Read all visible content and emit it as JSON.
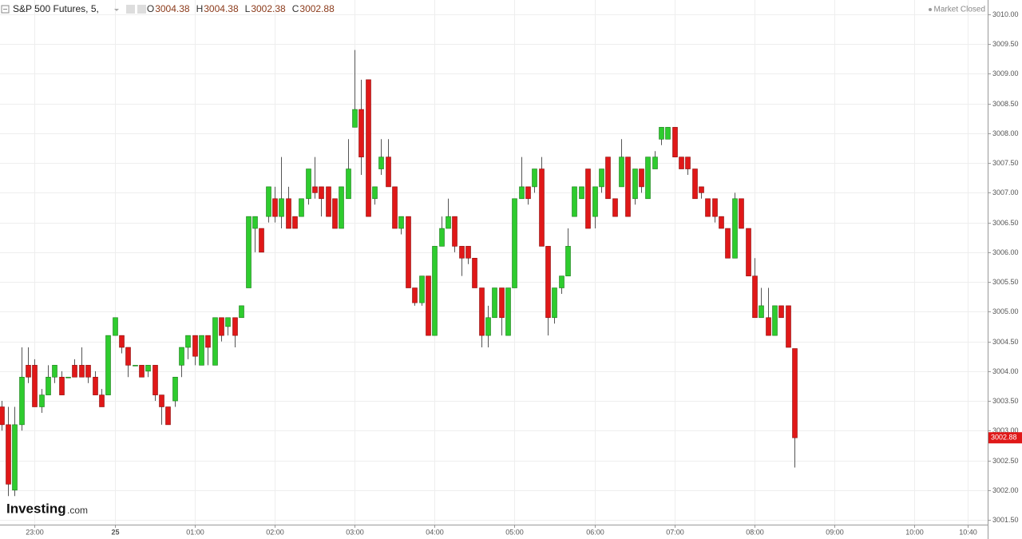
{
  "chart_data": {
    "type": "candlestick",
    "header": {
      "title": "S&P 500 Futures, 5,",
      "ohlc": [
        {
          "label": "O",
          "value": "3004.38"
        },
        {
          "label": "H",
          "value": "3004.38"
        },
        {
          "label": "L",
          "value": "3002.38"
        },
        {
          "label": "C",
          "value": "3002.88"
        }
      ]
    },
    "status": "Market Closed",
    "brand": {
      "name": "Investing",
      "suffix": ".com"
    },
    "price_label": "3002.88",
    "up_color": "#2ecc2e",
    "down_color": "#e01818",
    "grid": true,
    "xlim": [
      "22:34",
      "10:55"
    ],
    "ylim": [
      3001.42,
      3010.24
    ],
    "xticks": [
      "23:00",
      {
        "value": "00:00",
        "label": "25"
      },
      "01:00",
      "02:00",
      "03:00",
      "04:00",
      "05:00",
      "06:00",
      "07:00",
      "08:00",
      "09:00",
      "10:00",
      "10:40"
    ],
    "yticks": [
      {
        "value": 3001.5,
        "label": "3001.50"
      },
      {
        "value": 3002,
        "label": "3002.00"
      },
      {
        "value": 3002.5,
        "label": "3002.50"
      },
      {
        "value": 3003,
        "label": "3003.00"
      },
      {
        "value": 3003.5,
        "label": "3003.50"
      },
      {
        "value": 3004,
        "label": "3004.00"
      },
      {
        "value": 3004.5,
        "label": "3004.50"
      },
      {
        "value": 3005,
        "label": "3005.00"
      },
      {
        "value": 3005.5,
        "label": "3005.50"
      },
      {
        "value": 3006,
        "label": "3006.00"
      },
      {
        "value": 3006.5,
        "label": "3006.50"
      },
      {
        "value": 3007,
        "label": "3007.00"
      },
      {
        "value": 3007.5,
        "label": "3007.50"
      },
      {
        "value": 3008,
        "label": "3008.00"
      },
      {
        "value": 3008.5,
        "label": "3008.50"
      },
      {
        "value": 3009,
        "label": "3009.00"
      },
      {
        "value": 3009.5,
        "label": "3009.50"
      },
      {
        "value": 3010,
        "label": "3010.00"
      }
    ],
    "x": [
      "22:35",
      "22:40",
      "22:45",
      "22:50",
      "22:55",
      "23:00",
      "23:05",
      "23:10",
      "23:15",
      "23:20",
      "23:25",
      "23:30",
      "23:35",
      "23:40",
      "23:45",
      "23:50",
      "23:55",
      "00:00",
      "00:05",
      "00:10",
      "00:15",
      "00:20",
      "00:25",
      "00:30",
      "00:35",
      "00:40",
      "00:45",
      "00:50",
      "00:55",
      "01:00",
      "01:05",
      "01:10",
      "01:15",
      "01:20",
      "01:25",
      "01:30",
      "01:35",
      "01:40",
      "01:45",
      "01:50",
      "01:55",
      "02:00",
      "02:05",
      "02:10",
      "02:15",
      "02:20",
      "02:25",
      "02:30",
      "02:35",
      "02:40",
      "02:45",
      "02:50",
      "02:55",
      "03:00",
      "03:05",
      "03:10",
      "03:15",
      "03:20",
      "03:25",
      "03:30",
      "03:35",
      "03:40",
      "03:45",
      "03:50",
      "03:55",
      "04:00",
      "04:05",
      "04:10",
      "04:15",
      "04:20",
      "04:25",
      "04:30",
      "04:35",
      "04:40",
      "04:45",
      "04:50",
      "04:55",
      "05:00",
      "05:05",
      "05:10",
      "05:15",
      "05:20",
      "05:25",
      "05:30",
      "05:35",
      "05:40",
      "05:45",
      "05:50",
      "05:55",
      "06:00",
      "06:05",
      "06:10",
      "06:15",
      "06:20",
      "06:25",
      "06:30",
      "06:35",
      "06:40",
      "06:45",
      "06:50",
      "06:55",
      "07:00",
      "07:05",
      "07:10",
      "07:15",
      "07:20",
      "07:25",
      "07:30",
      "07:35",
      "07:40",
      "07:45",
      "07:50",
      "07:55",
      "08:00",
      "08:05",
      "08:10",
      "08:15",
      "08:20",
      "08:25",
      "08:30"
    ],
    "open": [
      3003.4,
      3003.1,
      3002.0,
      3003.1,
      3004.1,
      3004.1,
      3003.4,
      3003.6,
      3003.9,
      3003.9,
      3003.9,
      3004.1,
      3004.1,
      3004.1,
      3003.9,
      3003.6,
      3003.6,
      3004.6,
      3004.6,
      3004.4,
      3004.1,
      3004.1,
      3004.0,
      3004.1,
      3003.6,
      3003.4,
      3003.5,
      3004.1,
      3004.4,
      3004.6,
      3004.1,
      3004.6,
      3004.1,
      3004.9,
      3004.75,
      3004.9,
      3004.9,
      3005.4,
      3006.4,
      3006.4,
      3006.6,
      3006.9,
      3006.6,
      3006.9,
      3006.6,
      3006.6,
      3006.9,
      3007.1,
      3007.1,
      3007.1,
      3006.9,
      3006.4,
      3006.9,
      3008.1,
      3008.4,
      3008.9,
      3006.9,
      3007.4,
      3007.6,
      3007.1,
      3006.4,
      3006.6,
      3005.4,
      3005.15,
      3005.6,
      3004.6,
      3006.1,
      3006.4,
      3006.6,
      3006.1,
      3006.1,
      3005.9,
      3005.4,
      3004.6,
      3004.9,
      3005.4,
      3004.6,
      3005.4,
      3006.9,
      3007.1,
      3007.1,
      3007.4,
      3006.1,
      3004.9,
      3005.4,
      3005.6,
      3006.6,
      3006.9,
      3007.4,
      3006.6,
      3007.1,
      3007.6,
      3006.9,
      3007.1,
      3007.6,
      3006.9,
      3007.4,
      3006.9,
      3007.4,
      3007.9,
      3007.9,
      3008.1,
      3007.6,
      3007.6,
      3007.4,
      3007.1,
      3006.9,
      3006.9,
      3006.6,
      3006.4,
      3005.9,
      3006.9,
      3006.4,
      3005.6,
      3004.9,
      3004.9,
      3004.6,
      3005.1,
      3005.1,
      3004.38
    ],
    "high": [
      3003.5,
      3003.4,
      3003.4,
      3004.4,
      3004.4,
      3004.2,
      3003.7,
      3004.1,
      3004.1,
      3004.0,
      3003.9,
      3004.2,
      3004.4,
      3004.1,
      3004.0,
      3003.7,
      3004.6,
      3004.9,
      3004.6,
      3004.4,
      3004.1,
      3004.1,
      3004.1,
      3004.1,
      3003.6,
      3003.4,
      3003.9,
      3004.4,
      3004.6,
      3004.6,
      3004.6,
      3004.6,
      3004.9,
      3004.9,
      3004.9,
      3004.9,
      3005.1,
      3006.6,
      3006.6,
      3006.4,
      3007.1,
      3007.1,
      3007.6,
      3007.1,
      3006.6,
      3006.9,
      3007.4,
      3007.6,
      3007.1,
      3007.1,
      3006.9,
      3007.1,
      3007.9,
      3009.4,
      3008.9,
      3008.9,
      3007.1,
      3007.9,
      3007.9,
      3007.1,
      3006.6,
      3006.6,
      3005.4,
      3005.6,
      3005.6,
      3006.1,
      3006.6,
      3006.9,
      3006.6,
      3006.1,
      3006.1,
      3005.9,
      3005.4,
      3005.1,
      3005.4,
      3005.4,
      3005.4,
      3006.9,
      3007.6,
      3007.1,
      3007.4,
      3007.6,
      3006.1,
      3005.4,
      3005.6,
      3006.4,
      3007.1,
      3007.1,
      3007.4,
      3007.1,
      3007.4,
      3007.6,
      3006.9,
      3007.9,
      3007.6,
      3007.4,
      3007.4,
      3007.6,
      3007.7,
      3008.1,
      3008.1,
      3008.1,
      3007.6,
      3007.6,
      3007.4,
      3007.1,
      3006.9,
      3006.9,
      3006.6,
      3006.4,
      3007.0,
      3006.9,
      3006.4,
      3005.9,
      3005.4,
      3005.4,
      3005.1,
      3005.1,
      3005.1,
      3004.38
    ],
    "low": [
      3003.0,
      3001.9,
      3001.9,
      3003.0,
      3003.8,
      3003.4,
      3003.3,
      3003.6,
      3003.8,
      3003.6,
      3003.9,
      3003.9,
      3003.9,
      3003.8,
      3003.6,
      3003.4,
      3003.6,
      3004.6,
      3004.3,
      3003.9,
      3004.1,
      3003.9,
      3003.9,
      3003.5,
      3003.1,
      3003.1,
      3003.4,
      3003.9,
      3004.2,
      3004.1,
      3004.1,
      3004.1,
      3004.1,
      3004.5,
      3004.6,
      3004.4,
      3004.9,
      3005.4,
      3006.0,
      3006.0,
      3006.5,
      3006.5,
      3006.4,
      3006.4,
      3006.4,
      3006.6,
      3006.8,
      3006.9,
      3006.6,
      3006.6,
      3006.4,
      3006.4,
      3006.9,
      3008.1,
      3007.3,
      3006.6,
      3006.8,
      3007.3,
      3007.1,
      3006.4,
      3006.3,
      3005.4,
      3005.1,
      3005.1,
      3004.6,
      3004.6,
      3006.1,
      3006.4,
      3006.0,
      3005.6,
      3005.8,
      3005.4,
      3004.4,
      3004.4,
      3004.9,
      3004.6,
      3004.6,
      3005.4,
      3006.9,
      3006.8,
      3007.0,
      3006.1,
      3004.6,
      3004.8,
      3005.3,
      3005.6,
      3006.6,
      3006.9,
      3006.4,
      3006.4,
      3007.0,
      3006.9,
      3006.6,
      3007.1,
      3006.6,
      3006.8,
      3007.0,
      3006.9,
      3007.4,
      3007.8,
      3007.9,
      3007.6,
      3007.4,
      3007.3,
      3006.9,
      3006.9,
      3006.6,
      3006.5,
      3006.4,
      3005.9,
      3005.9,
      3006.4,
      3005.6,
      3004.9,
      3004.9,
      3004.6,
      3004.6,
      3004.9,
      3004.4,
      3002.38
    ],
    "close": [
      3003.1,
      3002.1,
      3003.1,
      3003.9,
      3003.9,
      3003.4,
      3003.6,
      3003.9,
      3004.1,
      3003.6,
      3003.9,
      3003.9,
      3003.9,
      3003.9,
      3003.6,
      3003.4,
      3004.6,
      3004.9,
      3004.4,
      3004.1,
      3004.1,
      3003.9,
      3004.1,
      3003.6,
      3003.4,
      3003.1,
      3003.9,
      3004.4,
      3004.6,
      3004.25,
      3004.6,
      3004.4,
      3004.9,
      3004.6,
      3004.9,
      3004.6,
      3005.1,
      3006.6,
      3006.6,
      3006.0,
      3007.1,
      3006.6,
      3006.9,
      3006.4,
      3006.4,
      3006.9,
      3007.4,
      3007.0,
      3006.9,
      3006.6,
      3006.4,
      3007.1,
      3007.4,
      3008.4,
      3007.6,
      3006.6,
      3007.1,
      3007.6,
      3007.1,
      3006.4,
      3006.6,
      3005.4,
      3005.15,
      3005.6,
      3004.6,
      3006.1,
      3006.4,
      3006.6,
      3006.1,
      3005.9,
      3005.9,
      3005.4,
      3004.6,
      3004.9,
      3005.4,
      3004.9,
      3005.4,
      3006.9,
      3007.1,
      3006.9,
      3007.4,
      3006.1,
      3004.9,
      3005.4,
      3005.6,
      3006.1,
      3007.1,
      3007.1,
      3006.4,
      3007.1,
      3007.4,
      3006.9,
      3006.6,
      3007.6,
      3006.6,
      3007.4,
      3007.1,
      3007.6,
      3007.6,
      3008.1,
      3008.1,
      3007.6,
      3007.4,
      3007.4,
      3006.9,
      3007.0,
      3006.6,
      3006.6,
      3006.4,
      3005.9,
      3006.9,
      3006.4,
      3005.6,
      3004.9,
      3005.1,
      3004.6,
      3005.1,
      3004.9,
      3004.4,
      3002.88
    ]
  }
}
